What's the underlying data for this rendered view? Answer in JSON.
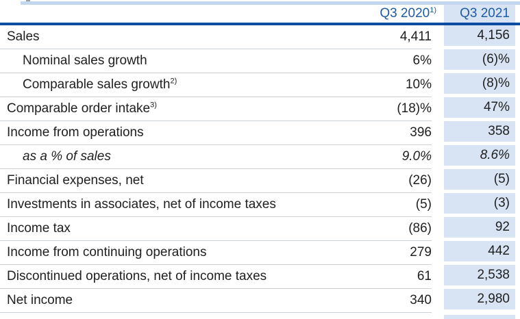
{
  "colors": {
    "header_text": "#1d5ba8",
    "header_rule": "#0d4da1",
    "highlight_column_bg": "#d8e4f4",
    "row_separator": "#ccd1d6",
    "body_text": "#202020"
  },
  "table": {
    "column_headers": [
      {
        "label": "Q3 2020",
        "superscript": "1)"
      },
      {
        "label": "Q3 2021",
        "superscript": ""
      }
    ],
    "rows": [
      {
        "label": "Sales",
        "superscript": "",
        "q3_2020": "4,411",
        "q3_2021": "4,156"
      },
      {
        "label": "Nominal sales growth",
        "superscript": "",
        "q3_2020": "6%",
        "q3_2021": "(6)%"
      },
      {
        "label": "Comparable sales growth",
        "superscript": "2)",
        "q3_2020": "10%",
        "q3_2021": "(8)%"
      },
      {
        "label": "Comparable order intake",
        "superscript": "3)",
        "q3_2020": "(18)%",
        "q3_2021": "47%"
      },
      {
        "label": "Income from operations",
        "superscript": "",
        "q3_2020": "396",
        "q3_2021": "358"
      },
      {
        "label": "as a % of sales",
        "superscript": "",
        "q3_2020": "9.0%",
        "q3_2021": "8.6%"
      },
      {
        "label": "Financial expenses, net",
        "superscript": "",
        "q3_2020": "(26)",
        "q3_2021": "(5)"
      },
      {
        "label": "Investments in associates, net of income taxes",
        "superscript": "",
        "q3_2020": "(5)",
        "q3_2021": "(3)"
      },
      {
        "label": "Income tax",
        "superscript": "",
        "q3_2020": "(86)",
        "q3_2021": "92"
      },
      {
        "label": "Income from continuing operations",
        "superscript": "",
        "q3_2020": "279",
        "q3_2021": "442"
      },
      {
        "label": "Discontinued operations, net of income taxes",
        "superscript": "",
        "q3_2020": "61",
        "q3_2021": "2,538"
      },
      {
        "label": "Net income",
        "superscript": "",
        "q3_2020": "340",
        "q3_2021": "2,980"
      }
    ]
  }
}
